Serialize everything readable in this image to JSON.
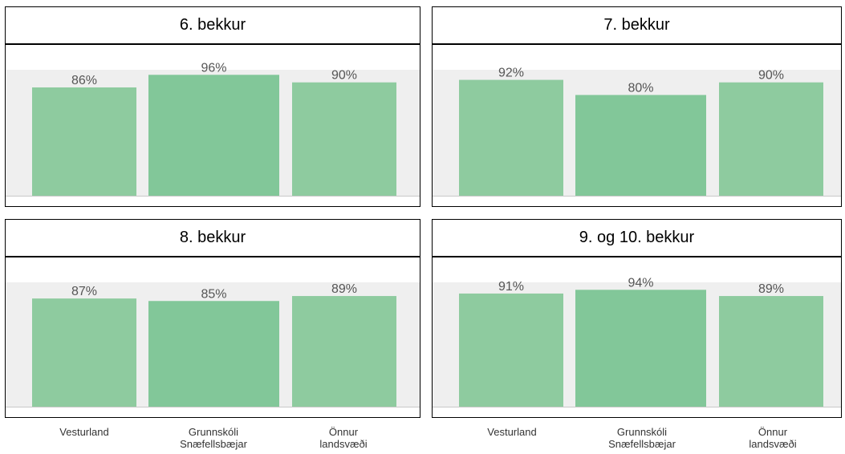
{
  "chart_data": [
    {
      "type": "bar",
      "title": "6. bekkur",
      "categories": [
        "Vesturland",
        "Grunnskóli Snæfellsbæjar",
        "Önnur landsvæði"
      ],
      "values": [
        86,
        96,
        90
      ],
      "labels": [
        "86%",
        "96%",
        "90%"
      ],
      "ylim": [
        0,
        100
      ]
    },
    {
      "type": "bar",
      "title": "7. bekkur",
      "categories": [
        "Vesturland",
        "Grunnskóli Snæfellsbæjar",
        "Önnur landsvæði"
      ],
      "values": [
        92,
        80,
        90
      ],
      "labels": [
        "92%",
        "80%",
        "90%"
      ],
      "ylim": [
        0,
        100
      ]
    },
    {
      "type": "bar",
      "title": "8. bekkur",
      "categories": [
        "Vesturland",
        "Grunnskóli Snæfellsbæjar",
        "Önnur landsvæði"
      ],
      "values": [
        87,
        85,
        89
      ],
      "labels": [
        "87%",
        "85%",
        "89%"
      ],
      "ylim": [
        0,
        100
      ]
    },
    {
      "type": "bar",
      "title": "9. og 10. bekkur",
      "categories": [
        "Vesturland",
        "Grunnskóli Snæfellsbæjar",
        "Önnur landsvæði"
      ],
      "values": [
        91,
        94,
        89
      ],
      "labels": [
        "91%",
        "94%",
        "89%"
      ],
      "ylim": [
        0,
        100
      ]
    }
  ],
  "x_axis_labels": [
    {
      "line1": "Vesturland",
      "line2": ""
    },
    {
      "line1": "Grunnskóli",
      "line2": "Snæfellsbæjar"
    },
    {
      "line1": "Önnur",
      "line2": "landsvæði"
    }
  ],
  "colors": {
    "bar": "#8ecb9f",
    "bar_highlight": "#82c799",
    "plot_bg": "#efefef",
    "baseline": "#c8c8c8",
    "label": "#555555"
  }
}
